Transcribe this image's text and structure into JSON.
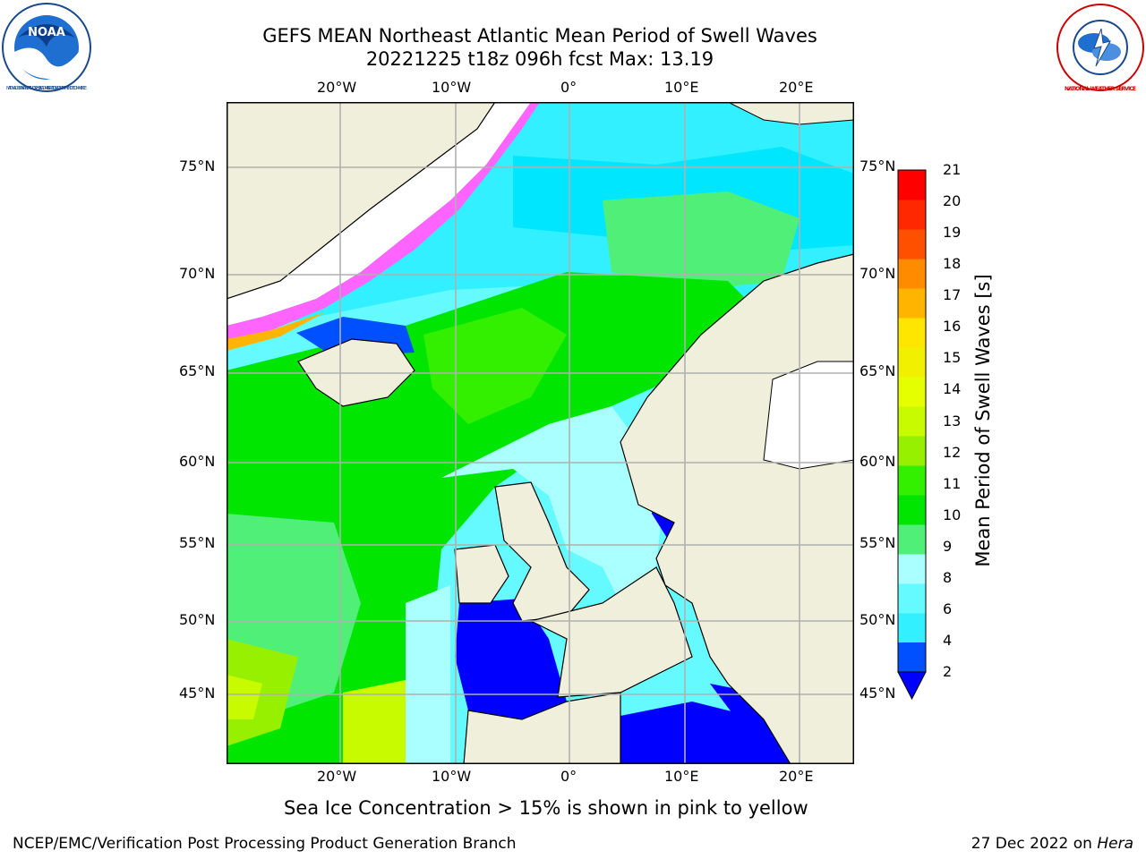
{
  "title": {
    "line1": "GEFS MEAN Northeast Atlantic Mean Period of Swell Waves",
    "line2": "20221225 t18z 096h fcst   Max: 13.19"
  },
  "logos": {
    "left": "NOAA",
    "right": "NATIONAL WEATHER SERVICE",
    "left_ring": "NATIONAL OCEANIC AND ATMOSPHERIC ADMINISTRATION · U.S. DEPARTMENT OF COMMERCE"
  },
  "axes": {
    "top_lon": [
      "20°W",
      "10°W",
      "0°",
      "10°E",
      "20°E"
    ],
    "bottom_lon": [
      "20°W",
      "10°W",
      "0°",
      "10°E",
      "20°E"
    ],
    "left_lat": [
      "75°N",
      "70°N",
      "65°N",
      "60°N",
      "55°N",
      "50°N",
      "45°N"
    ],
    "right_lat": [
      "75°N",
      "70°N",
      "65°N",
      "60°N",
      "55°N",
      "50°N",
      "45°N"
    ]
  },
  "colorbar": {
    "label": "Mean Period of Swell Waves [s]",
    "ticks": [
      "2",
      "4",
      "6",
      "8",
      "9",
      "10",
      "11",
      "12",
      "13",
      "14",
      "15",
      "16",
      "17",
      "18",
      "19",
      "20",
      "21"
    ],
    "colors": [
      "#0050ff",
      "#00e6ff",
      "#32f0ff",
      "#64faff",
      "#aaffff",
      "#50f078",
      "#00e600",
      "#32f000",
      "#96f000",
      "#c8fa00",
      "#e6ff00",
      "#f0f000",
      "#ffe600",
      "#ffb400",
      "#ff8c00",
      "#ff5000",
      "#ff2800",
      "#ff0000"
    ],
    "extend_color": "#0000ff"
  },
  "note": "Sea Ice Concentration > 15% is shown in pink to yellow",
  "footer": {
    "left": "NCEP/EMC/Verification Post Processing Product Generation Branch",
    "right_date": "27 Dec 2022 on ",
    "right_host": "Hera"
  }
}
